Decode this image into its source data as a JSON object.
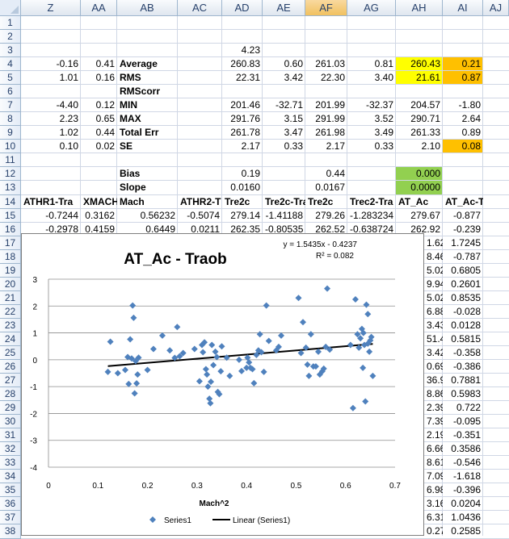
{
  "columns": [
    "Z",
    "AA",
    "AB",
    "AC",
    "AD",
    "AE",
    "AF",
    "AG",
    "AH",
    "AI",
    "AJ"
  ],
  "selected_column": "AF",
  "rows": [
    "1",
    "2",
    "3",
    "4",
    "5",
    "6",
    "7",
    "8",
    "9",
    "10",
    "11",
    "12",
    "13",
    "14",
    "15",
    "16",
    "17",
    "18",
    "19",
    "20",
    "21",
    "22",
    "23",
    "24",
    "25",
    "26",
    "27",
    "28",
    "29",
    "30",
    "31",
    "32",
    "33",
    "34",
    "35",
    "36",
    "37",
    "38"
  ],
  "cells": {
    "r3": {
      "AD": "4.23"
    },
    "r4": {
      "Z": "-0.16",
      "AA": "0.41",
      "AB": "Average",
      "AD": "260.83",
      "AE": "0.60",
      "AF": "261.03",
      "AG": "0.81",
      "AH": "260.43",
      "AI": "0.21"
    },
    "r5": {
      "Z": "1.01",
      "AA": "0.16",
      "AB": "RMS",
      "AD": "22.31",
      "AE": "3.42",
      "AF": "22.30",
      "AG": "3.40",
      "AH": "21.61",
      "AI": "0.87"
    },
    "r6": {
      "AB": "RMScorr"
    },
    "r7": {
      "Z": "-4.40",
      "AA": "0.12",
      "AB": "MIN",
      "AD": "201.46",
      "AE": "-32.71",
      "AF": "201.99",
      "AG": "-32.37",
      "AH": "204.57",
      "AI": "-1.80"
    },
    "r8": {
      "Z": "2.23",
      "AA": "0.65",
      "AB": "MAX",
      "AD": "291.76",
      "AE": "3.15",
      "AF": "291.99",
      "AG": "3.52",
      "AH": "290.71",
      "AI": "2.64"
    },
    "r9": {
      "Z": "1.02",
      "AA": "0.44",
      "AB": "Total Err",
      "AD": "261.78",
      "AE": "3.47",
      "AF": "261.98",
      "AG": "3.49",
      "AH": "261.33",
      "AI": "0.89"
    },
    "r10": {
      "Z": "0.10",
      "AA": "0.02",
      "AB": "SE",
      "AD": "2.17",
      "AE": "0.33",
      "AF": "2.17",
      "AG": "0.33",
      "AH": "2.10",
      "AI": "0.08"
    },
    "r12": {
      "AB": "Bias",
      "AD": "0.19",
      "AF": "0.44",
      "AH": "0.000"
    },
    "r13": {
      "AB": "Slope",
      "AD": "0.0160",
      "AF": "0.0167",
      "AH": "0.0000"
    },
    "r14": {
      "Z": "ATHR1-Tra",
      "AA": "XMACH2",
      "AB": "Mach",
      "AC": "ATHR2-T",
      "AD": "Tre2c",
      "AE": "Tre2c-Tra",
      "AF": "Tre2c",
      "AG": "Trec2-Tra",
      "AH": "AT_Ac",
      "AI": "AT_Ac-Traob"
    },
    "r15": {
      "Z": "-0.7244",
      "AA": "0.3162",
      "AB": "0.56232",
      "AC": "-0.5074",
      "AD": "279.14",
      "AE": "-1.41188",
      "AF": "279.26",
      "AG": "-1.283234",
      "AH": "279.67",
      "AI": "-0.877"
    },
    "r16": {
      "Z": "-0.2978",
      "AA": "0.4159",
      "AB": "0.6449",
      "AC": "0.0211",
      "AD": "262.35",
      "AE": "-0.80535",
      "AF": "262.52",
      "AG": "-0.638724",
      "AH": "262.92",
      "AI": "-0.239"
    }
  },
  "right_partial": {
    "AH": [
      "1.62",
      "8.46",
      "5.02",
      "9.94",
      "5.02",
      "6.88",
      "3.43",
      "51.4",
      "3.42",
      "0.69",
      "36.9",
      "8.86",
      "2.39",
      "7.39",
      "2.19",
      "6.66",
      "8.61",
      "7.09",
      "6.98",
      "3.16",
      "6.31",
      "0.27"
    ],
    "AI": [
      "1.7245",
      "-0.787",
      "0.6805",
      "0.2601",
      "0.8535",
      "-0.028",
      "0.0128",
      "0.5815",
      "-0.358",
      "-0.386",
      "0.7881",
      "0.5983",
      "0.722",
      "-0.095",
      "-0.351",
      "0.3586",
      "-0.546",
      "-1.618",
      "-0.396",
      "0.0204",
      "1.0436",
      "0.2585"
    ]
  },
  "colors": {
    "yellow": "#ffff00",
    "orange": "#ffc000",
    "green": "#92d050",
    "marker": "#4f81bd",
    "trend": "#000000"
  },
  "chart": {
    "equation": "y = 1.5435x - 0.4237",
    "r2": "R² = 0.082",
    "legend_series": "Series1",
    "legend_trend": "Linear (Series1)"
  },
  "chart_data": {
    "type": "scatter",
    "title": "AT_Ac - Traob",
    "xlabel": "Mach^2",
    "ylabel": "",
    "xlim": [
      0,
      0.7
    ],
    "ylim": [
      -4,
      3
    ],
    "x_ticks": [
      "0",
      "0.1",
      "0.2",
      "0.3",
      "0.4",
      "0.5",
      "0.6",
      "0.7"
    ],
    "y_ticks": [
      "3",
      "2",
      "1",
      "0",
      "-1",
      "-2",
      "-3",
      "-4"
    ],
    "grid": "horizontal",
    "legend": "bottom",
    "series": [
      {
        "name": "Series1",
        "points": [
          [
            0.12,
            -0.45
          ],
          [
            0.125,
            0.67
          ],
          [
            0.14,
            -0.5
          ],
          [
            0.155,
            -0.38
          ],
          [
            0.16,
            0.1
          ],
          [
            0.162,
            -0.9
          ],
          [
            0.165,
            0.76
          ],
          [
            0.168,
            0.05
          ],
          [
            0.17,
            2.02
          ],
          [
            0.172,
            1.56
          ],
          [
            0.174,
            -1.25
          ],
          [
            0.176,
            -0.05
          ],
          [
            0.178,
            -0.88
          ],
          [
            0.18,
            -0.55
          ],
          [
            0.182,
            0.08
          ],
          [
            0.2,
            -0.38
          ],
          [
            0.212,
            0.4
          ],
          [
            0.23,
            0.9
          ],
          [
            0.245,
            0.35
          ],
          [
            0.255,
            0.07
          ],
          [
            0.26,
            1.22
          ],
          [
            0.265,
            0.13
          ],
          [
            0.272,
            0.25
          ],
          [
            0.295,
            0.4
          ],
          [
            0.305,
            -0.8
          ],
          [
            0.31,
            0.55
          ],
          [
            0.312,
            0.28
          ],
          [
            0.315,
            0.65
          ],
          [
            0.318,
            -0.35
          ],
          [
            0.32,
            -0.55
          ],
          [
            0.322,
            -1.0
          ],
          [
            0.325,
            -1.45
          ],
          [
            0.327,
            -1.62
          ],
          [
            0.328,
            -0.82
          ],
          [
            0.33,
            0.55
          ],
          [
            0.333,
            -0.2
          ],
          [
            0.337,
            0.3
          ],
          [
            0.34,
            0.1
          ],
          [
            0.342,
            -1.2
          ],
          [
            0.345,
            -1.28
          ],
          [
            0.348,
            -0.43
          ],
          [
            0.35,
            0.5
          ],
          [
            0.36,
            0.08
          ],
          [
            0.366,
            -0.6
          ],
          [
            0.385,
            0.0
          ],
          [
            0.39,
            -0.42
          ],
          [
            0.4,
            -0.3
          ],
          [
            0.402,
            0.08
          ],
          [
            0.405,
            -0.1
          ],
          [
            0.408,
            -0.3
          ],
          [
            0.412,
            -0.35
          ],
          [
            0.415,
            -0.87
          ],
          [
            0.42,
            0.18
          ],
          [
            0.424,
            0.35
          ],
          [
            0.427,
            0.95
          ],
          [
            0.43,
            0.28
          ],
          [
            0.435,
            -0.45
          ],
          [
            0.44,
            2.02
          ],
          [
            0.445,
            0.7
          ],
          [
            0.46,
            0.35
          ],
          [
            0.465,
            0.48
          ],
          [
            0.47,
            0.9
          ],
          [
            0.505,
            2.3
          ],
          [
            0.51,
            0.25
          ],
          [
            0.514,
            1.4
          ],
          [
            0.52,
            0.45
          ],
          [
            0.523,
            -0.18
          ],
          [
            0.526,
            -0.6
          ],
          [
            0.53,
            0.95
          ],
          [
            0.535,
            -0.25
          ],
          [
            0.54,
            -0.25
          ],
          [
            0.545,
            0.3
          ],
          [
            0.548,
            -0.55
          ],
          [
            0.553,
            -0.43
          ],
          [
            0.556,
            -0.33
          ],
          [
            0.56,
            0.48
          ],
          [
            0.563,
            2.65
          ],
          [
            0.568,
            0.38
          ],
          [
            0.61,
            0.55
          ],
          [
            0.615,
            -1.8
          ],
          [
            0.62,
            2.25
          ],
          [
            0.624,
            0.95
          ],
          [
            0.627,
            0.45
          ],
          [
            0.63,
            0.8
          ],
          [
            0.633,
            1.15
          ],
          [
            0.636,
            1.0
          ],
          [
            0.638,
            0.55
          ],
          [
            0.64,
            -1.55
          ],
          [
            0.642,
            2.05
          ],
          [
            0.645,
            0.6
          ],
          [
            0.648,
            0.3
          ],
          [
            0.65,
            0.72
          ],
          [
            0.652,
            0.85
          ],
          [
            0.655,
            -0.6
          ],
          [
            0.635,
            -0.3
          ],
          [
            0.645,
            1.7
          ]
        ]
      },
      {
        "name": "Linear (Series1)",
        "slope": 1.5435,
        "intercept": -0.4237,
        "x_range": [
          0.12,
          0.655
        ]
      }
    ]
  }
}
